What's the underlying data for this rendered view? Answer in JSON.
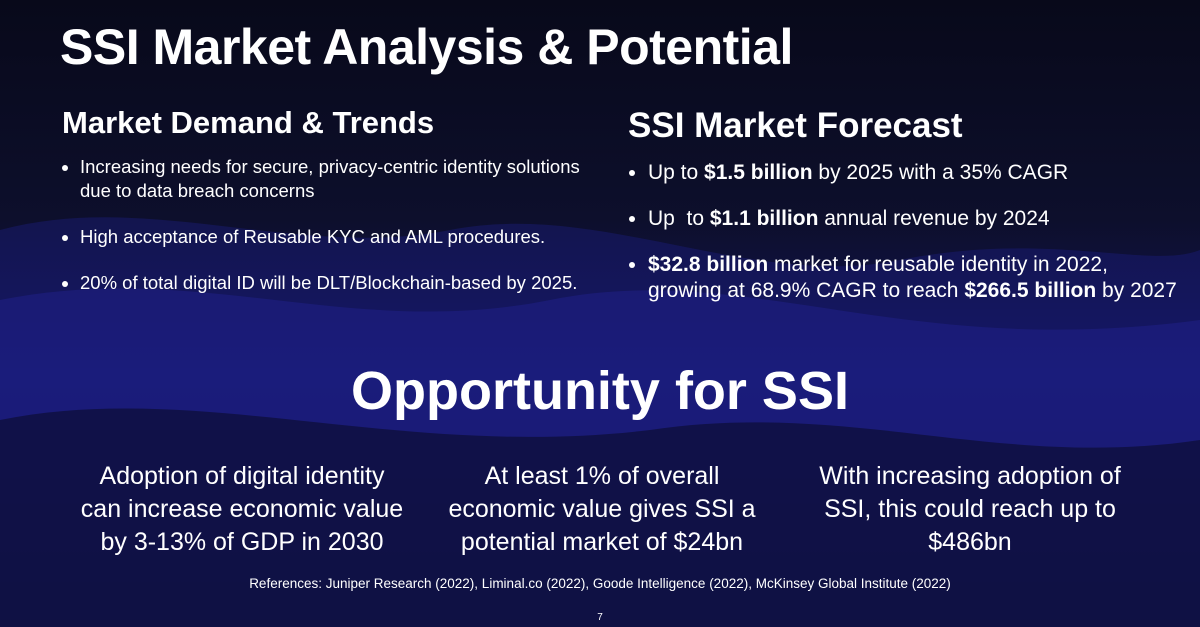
{
  "title": "SSI Market Analysis & Potential",
  "demand": {
    "heading": "Market Demand & Trends",
    "bullets": [
      "Increasing needs for secure, privacy-centric identity solutions due to data breach concerns",
      "High acceptance of Reusable KYC and AML procedures.",
      "20% of total digital ID will be DLT/Blockchain-based by 2025."
    ]
  },
  "forecast": {
    "heading": "SSI Market Forecast",
    "bullets": [
      [
        {
          "text": "Up to "
        },
        {
          "text": "$1.5 billion",
          "bold": true
        },
        {
          "text": " by 2025 with a 35% CAGR"
        }
      ],
      [
        {
          "text": "Up  to "
        },
        {
          "text": "$1.1 billion",
          "bold": true
        },
        {
          "text": " annual revenue by 2024"
        }
      ],
      [
        {
          "text": "$32.8 billion",
          "bold": true
        },
        {
          "text": " market for reusable identity in 2022, growing at 68.9% CAGR to reach "
        },
        {
          "text": "$266.5 billion",
          "bold": true
        },
        {
          "text": " by 2027"
        }
      ]
    ]
  },
  "opportunity": {
    "heading": "Opportunity for SSI",
    "items": [
      "Adoption of digital identity can increase economic value by 3-13% of GDP in 2030",
      "At least 1% of overall economic value gives SSI a potential market of $24bn",
      "With increasing adoption of SSI, this could reach up to $486bn"
    ]
  },
  "references": "References: Juniper Research (2022), Liminal.co (2022), Goode Intelligence (2022), McKinsey Global Institute (2022)",
  "page_number": "7"
}
